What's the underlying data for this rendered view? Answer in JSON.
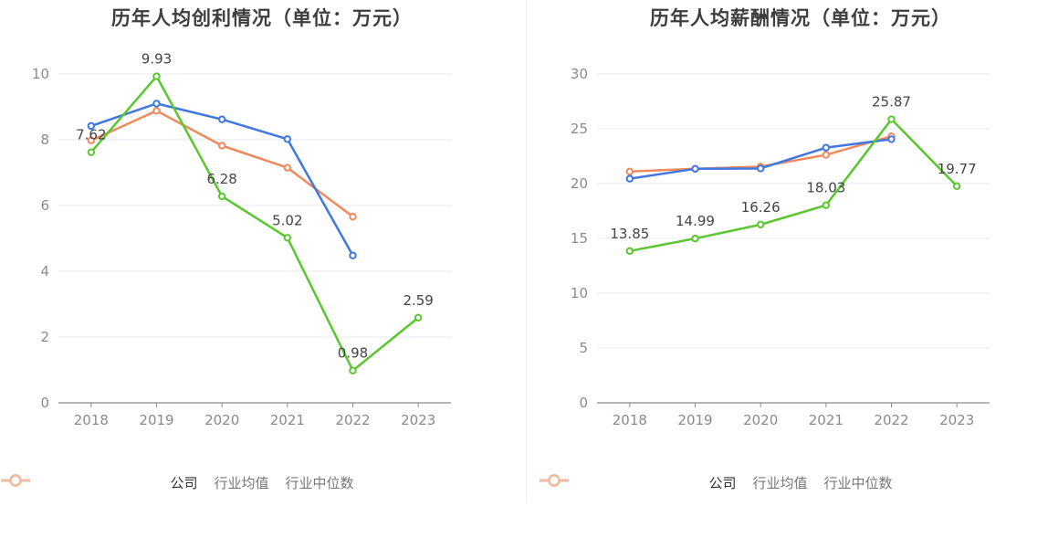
{
  "colors": {
    "company": "#5ac72f",
    "industry_avg": "#3f78e0",
    "industry_median": "#f08a5d",
    "grid": "#e6e9f2",
    "axis": "#8a8a8a"
  },
  "legend": {
    "company": "公司",
    "industry_avg": "行业均值",
    "industry_median": "行业中位数"
  },
  "chart_data": [
    {
      "type": "line",
      "title": "历年人均创利情况（单位：万元）",
      "categories": [
        "2018",
        "2019",
        "2020",
        "2021",
        "2022",
        "2023"
      ],
      "ylim": [
        0,
        10
      ],
      "yticks": [
        0,
        2,
        4,
        6,
        8,
        10
      ],
      "grid": true,
      "legend_position": "bottom",
      "series": [
        {
          "key": "company",
          "name": "公司",
          "values": [
            7.62,
            9.93,
            6.28,
            5.02,
            0.98,
            2.59
          ],
          "labels": [
            "7.62",
            "9.93",
            "6.28",
            "5.02",
            "0.98",
            "2.59"
          ]
        },
        {
          "key": "industry_avg",
          "name": "行业均值",
          "values": [
            8.42,
            9.1,
            8.62,
            8.02,
            4.48,
            null
          ]
        },
        {
          "key": "industry_median",
          "name": "行业中位数",
          "values": [
            7.98,
            8.88,
            7.82,
            7.15,
            5.66,
            null
          ]
        }
      ]
    },
    {
      "type": "line",
      "title": "历年人均薪酬情况（单位：万元）",
      "categories": [
        "2018",
        "2019",
        "2020",
        "2021",
        "2022",
        "2023"
      ],
      "ylim": [
        0,
        30
      ],
      "yticks": [
        0,
        5,
        10,
        15,
        20,
        25,
        30
      ],
      "grid": true,
      "legend_position": "bottom",
      "series": [
        {
          "key": "company",
          "name": "公司",
          "values": [
            13.85,
            14.99,
            16.26,
            18.03,
            25.87,
            19.77
          ],
          "labels": [
            "13.85",
            "14.99",
            "16.26",
            "18.03",
            "25.87",
            "19.77"
          ]
        },
        {
          "key": "industry_avg",
          "name": "行业均值",
          "values": [
            20.45,
            21.35,
            21.38,
            23.28,
            24.05,
            null
          ]
        },
        {
          "key": "industry_median",
          "name": "行业中位数",
          "values": [
            21.1,
            21.35,
            21.55,
            22.62,
            24.32,
            null
          ]
        }
      ]
    }
  ]
}
